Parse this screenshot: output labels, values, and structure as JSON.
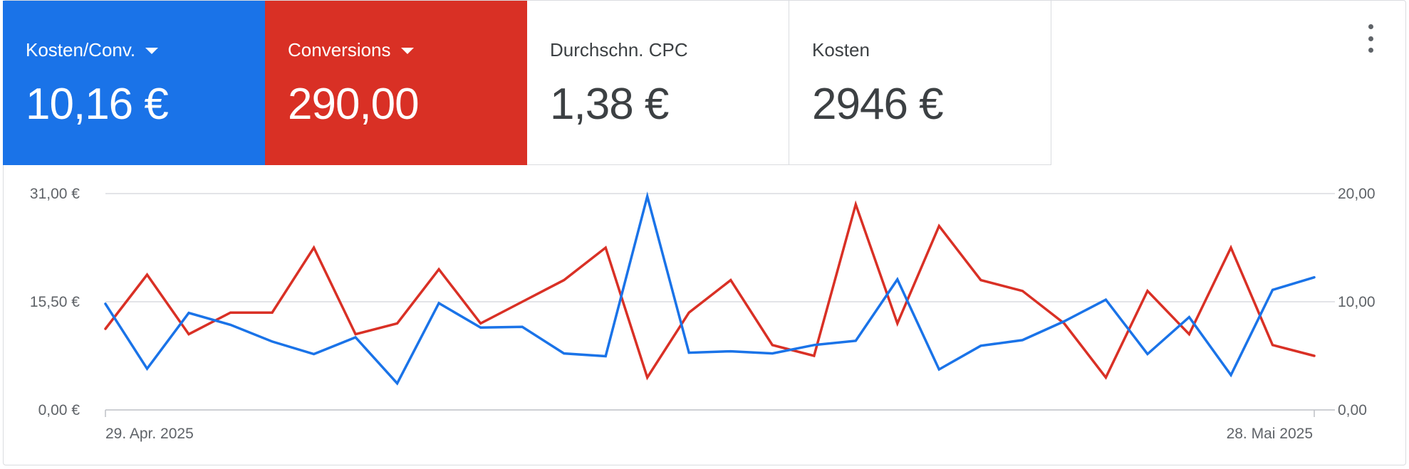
{
  "scorecards": [
    {
      "label": "Kosten/Conv.",
      "value": "10,16 €",
      "color": "#1a73e8",
      "dropdown": true
    },
    {
      "label": "Conversions",
      "value": "290,00",
      "color": "#d93025",
      "dropdown": true
    },
    {
      "label": "Durchschn. CPC",
      "value": "1,38 €",
      "color": "#ffffff",
      "dropdown": false
    },
    {
      "label": "Kosten",
      "value": "2946 €",
      "color": "#ffffff",
      "dropdown": false
    }
  ],
  "menu_icon": "more-vert-icon",
  "chart_data": {
    "type": "line",
    "x": [
      "29. Apr. 2025",
      "30. Apr. 2025",
      "01. Mai 2025",
      "02. Mai 2025",
      "03. Mai 2025",
      "04. Mai 2025",
      "05. Mai 2025",
      "06. Mai 2025",
      "07. Mai 2025",
      "08. Mai 2025",
      "09. Mai 2025",
      "10. Mai 2025",
      "11. Mai 2025",
      "12. Mai 2025",
      "13. Mai 2025",
      "14. Mai 2025",
      "15. Mai 2025",
      "16. Mai 2025",
      "17. Mai 2025",
      "18. Mai 2025",
      "19. Mai 2025",
      "20. Mai 2025",
      "21. Mai 2025",
      "22. Mai 2025",
      "23. Mai 2025",
      "24. Mai 2025",
      "25. Mai 2025",
      "26. Mai 2025",
      "27. Mai 2025",
      "28. Mai 2025"
    ],
    "xticks": [
      "29. Apr. 2025",
      "28. Mai 2025"
    ],
    "series": [
      {
        "name": "Kosten/Conv.",
        "axis": "left",
        "color": "#1a73e8",
        "values": [
          15.2,
          5.9,
          13.9,
          12.2,
          9.8,
          8.0,
          10.4,
          3.8,
          15.3,
          11.8,
          11.9,
          8.1,
          7.7,
          30.6,
          8.2,
          8.4,
          8.1,
          9.3,
          9.9,
          18.7,
          5.8,
          9.2,
          10.0,
          12.7,
          15.8,
          8.0,
          13.3,
          5.0,
          17.2,
          19.0
        ]
      },
      {
        "name": "Conversions",
        "axis": "right",
        "color": "#d93025",
        "values": [
          7.5,
          12.5,
          7.0,
          9.0,
          9.0,
          15.0,
          7.0,
          8.0,
          13.0,
          8.0,
          10.0,
          12.0,
          15.0,
          3.0,
          9.0,
          12.0,
          6.0,
          5.0,
          19.0,
          8.0,
          17.0,
          12.0,
          11.0,
          8.0,
          3.0,
          11.0,
          7.0,
          15.0,
          6.0,
          5.0
        ]
      }
    ],
    "left_axis": {
      "ticks": [
        "0,00 €",
        "15,50 €",
        "31,00 €"
      ],
      "ylim": [
        0,
        31
      ]
    },
    "right_axis": {
      "ticks": [
        "0,00",
        "10,00",
        "20,00"
      ],
      "ylim": [
        0,
        20
      ]
    },
    "grid": true
  }
}
